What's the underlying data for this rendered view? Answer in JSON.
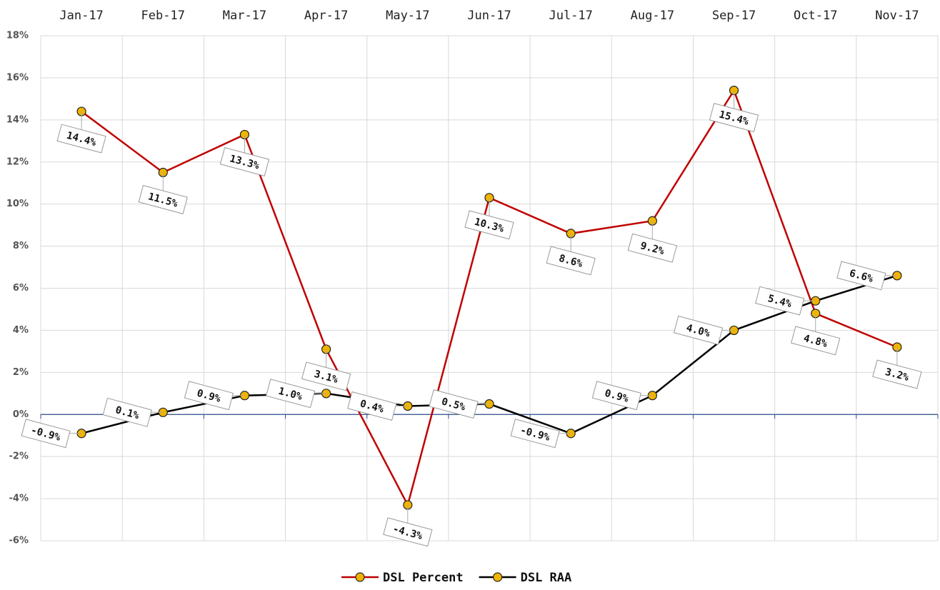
{
  "chart_data": {
    "type": "line",
    "categories": [
      "Jan-17",
      "Feb-17",
      "Mar-17",
      "Apr-17",
      "May-17",
      "Jun-17",
      "Jul-17",
      "Aug-17",
      "Sep-17",
      "Oct-17",
      "Nov-17"
    ],
    "series": [
      {
        "name": "DSL Percent",
        "color": "#c00000",
        "marker_color": "#f0b400",
        "values": [
          14.4,
          11.5,
          13.3,
          3.1,
          -4.3,
          10.3,
          8.6,
          9.2,
          15.4,
          4.8,
          3.2
        ],
        "value_labels": [
          "14.4%",
          "11.5%",
          "13.3%",
          "3.1%",
          "-4.3%",
          "10.3%",
          "8.6%",
          "9.2%",
          "15.4%",
          "4.8%",
          "3.2%"
        ]
      },
      {
        "name": "DSL RAA",
        "color": "#000000",
        "marker_color": "#f0b400",
        "values": [
          -0.9,
          0.1,
          0.9,
          1.0,
          0.4,
          0.5,
          -0.9,
          0.9,
          4.0,
          5.4,
          6.6
        ],
        "value_labels": [
          "-0.9%",
          "0.1%",
          "0.9%",
          "1.0%",
          "0.4%",
          "0.5%",
          "-0.9%",
          "0.9%",
          "4.0%",
          "5.4%",
          "6.6%"
        ]
      }
    ],
    "ylim": [
      -6,
      18
    ],
    "yticks": [
      {
        "value": -6,
        "label": "-6%"
      },
      {
        "value": -4,
        "label": "-4%"
      },
      {
        "value": -2,
        "label": "-2%"
      },
      {
        "value": 0,
        "label": "0%"
      },
      {
        "value": 2,
        "label": "2%"
      },
      {
        "value": 4,
        "label": "4%"
      },
      {
        "value": 6,
        "label": "6%"
      },
      {
        "value": 8,
        "label": "8%"
      },
      {
        "value": 10,
        "label": "10%"
      },
      {
        "value": 12,
        "label": "12%"
      },
      {
        "value": 14,
        "label": "14%"
      },
      {
        "value": 16,
        "label": "16%"
      },
      {
        "value": 18,
        "label": "18%"
      }
    ],
    "grid": true,
    "legend": "bottom"
  }
}
